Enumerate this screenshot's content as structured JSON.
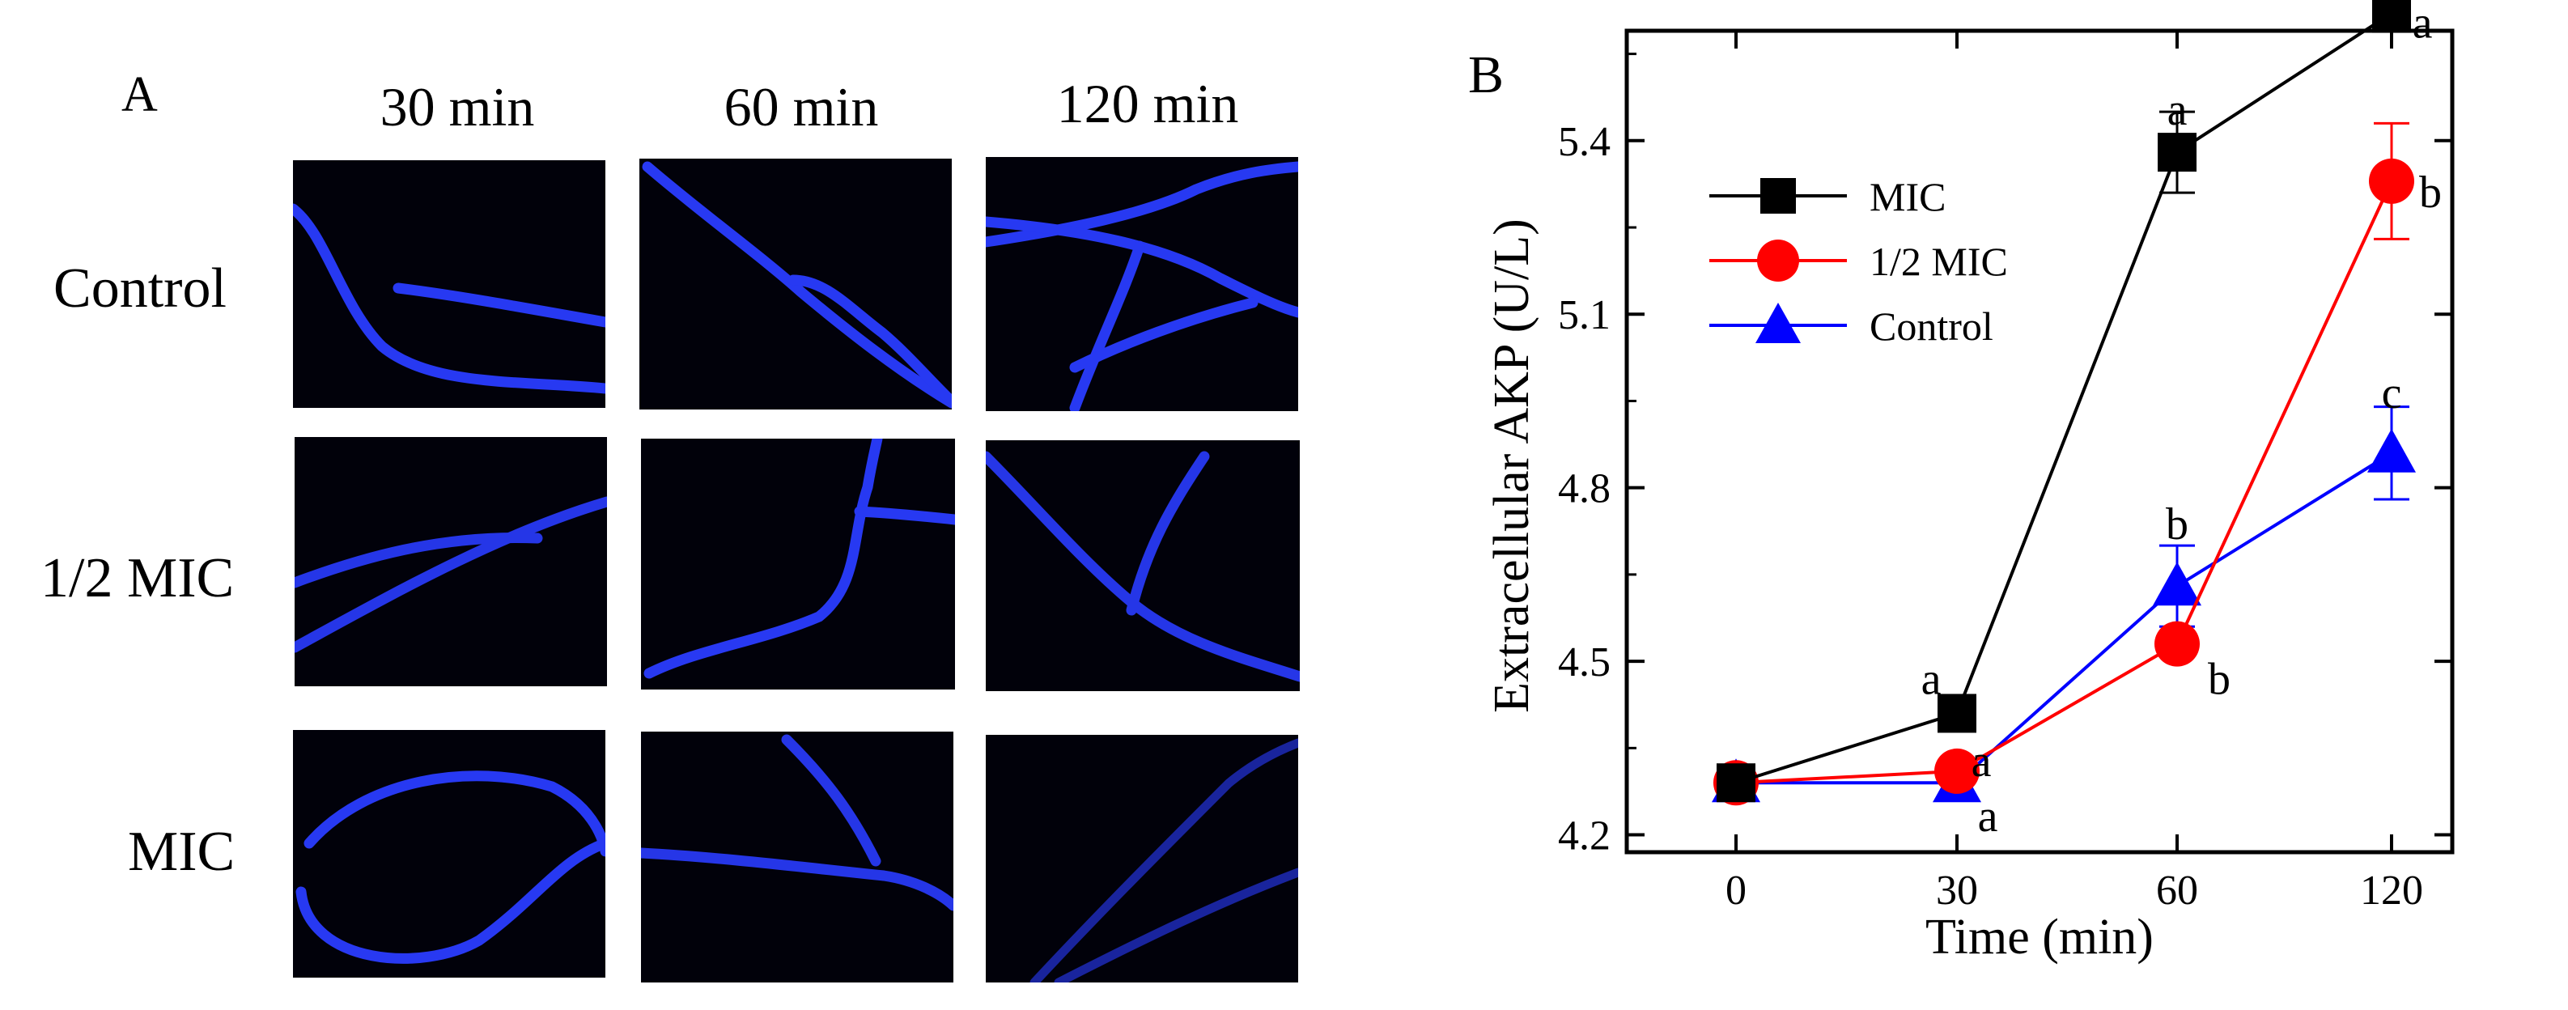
{
  "panel_a": {
    "letter": "A",
    "columns": [
      "30 min",
      "60 min",
      "120 min"
    ],
    "rows": [
      "Control",
      "1/2 MIC",
      "MIC"
    ]
  },
  "panel_b": {
    "letter": "B"
  },
  "colors": {
    "mic": "#000000",
    "half_mic": "#ff0000",
    "control": "#0000ff",
    "hyphae": "#2a3cff",
    "micro_bg": "#01010a"
  },
  "chart_data": {
    "type": "line",
    "xlabel": "Time (min)",
    "ylabel": "Extracellular AKP (U/L)",
    "x": [
      0,
      30,
      60,
      120
    ],
    "x_tick_labels": [
      "0",
      "30",
      "60",
      "120"
    ],
    "y_ticks": [
      4.2,
      4.5,
      4.8,
      5.1,
      5.4
    ],
    "y_tick_labels": [
      "4.2",
      "4.5",
      "4.8",
      "5.1",
      "5.4"
    ],
    "ylim": [
      4.17,
      5.59
    ],
    "legend_position": "top-left",
    "grid": false,
    "series": [
      {
        "name": "MIC",
        "marker": "square",
        "color": "#000000",
        "values": [
          4.29,
          4.41,
          5.38,
          5.62
        ],
        "errors": [
          0.0,
          0.0,
          0.07,
          0.0
        ],
        "letters": [
          "",
          "a",
          "a",
          "a"
        ]
      },
      {
        "name": "1/2 MIC",
        "marker": "circle",
        "color": "#ff0000",
        "values": [
          4.29,
          4.31,
          4.53,
          5.33
        ],
        "errors": [
          0.0,
          0.0,
          0.0,
          0.1
        ],
        "letters": [
          "",
          "a",
          "b",
          "b"
        ]
      },
      {
        "name": "Control",
        "marker": "triangle",
        "color": "#0000ff",
        "values": [
          4.29,
          4.29,
          4.63,
          4.86
        ],
        "errors": [
          0.0,
          0.0,
          0.07,
          0.08
        ],
        "letters": [
          "",
          "a",
          "b",
          "c"
        ]
      }
    ]
  }
}
